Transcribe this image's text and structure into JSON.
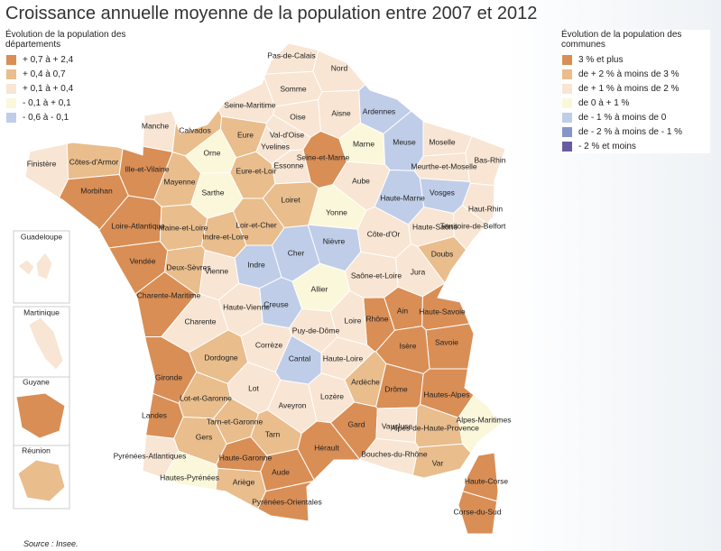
{
  "title": "Croissance annuelle moyenne de la population entre 2007 et 2012",
  "legend_departements": {
    "title": "Évolution de la population des départements",
    "items": [
      {
        "label": "+ 0,7 à + 2,4",
        "color": "#d98e55"
      },
      {
        "label": "+ 0,4 à 0,7",
        "color": "#e9bd8c"
      },
      {
        "label": "+ 0,1 à + 0,4",
        "color": "#f8e5d3"
      },
      {
        "label": "- 0,1 à + 0,1",
        "color": "#fbf7da"
      },
      {
        "label": "- 0,6 à - 0,1",
        "color": "#bfcde8"
      }
    ]
  },
  "legend_communes": {
    "title": "Évolution de la population des communes",
    "items": [
      {
        "label": "3 % et plus",
        "color": "#d98e55"
      },
      {
        "label": "de + 2 % à moins de 3 %",
        "color": "#e9bd8c"
      },
      {
        "label": "de + 1 % à moins de 2 %",
        "color": "#f8e5d3"
      },
      {
        "label": "de 0 à + 1 %",
        "color": "#fbf7da"
      },
      {
        "label": "de - 1 % à moins de 0",
        "color": "#bfcde8"
      },
      {
        "label": "de - 2 % à moins de - 1 %",
        "color": "#8696c8"
      },
      {
        "label": "- 2 % et moins",
        "color": "#6a5aa0"
      }
    ]
  },
  "departements": [
    {
      "label": "Pas-de-Calais",
      "color": "#f8e5d3"
    },
    {
      "label": "Nord",
      "color": "#f8e5d3"
    },
    {
      "label": "Somme",
      "color": "#f8e5d3"
    },
    {
      "label": "Seine-Maritime",
      "color": "#f8e5d3"
    },
    {
      "label": "Aisne",
      "color": "#f8e5d3"
    },
    {
      "label": "Ardennes",
      "color": "#bfcde8"
    },
    {
      "label": "Manche",
      "color": "#f8e5d3"
    },
    {
      "label": "Calvados",
      "color": "#e9bd8c"
    },
    {
      "label": "Eure",
      "color": "#e9bd8c"
    },
    {
      "label": "Oise",
      "color": "#f8e5d3"
    },
    {
      "label": "Val-d'Oise",
      "color": "#f8e5d3"
    },
    {
      "label": "Yvelines",
      "color": "#f8e5d3"
    },
    {
      "label": "Seine-et-Marne",
      "color": "#d98e55"
    },
    {
      "label": "Marne",
      "color": "#fbf7da"
    },
    {
      "label": "Meuse",
      "color": "#bfcde8"
    },
    {
      "label": "Moselle",
      "color": "#f8e5d3"
    },
    {
      "label": "Bas-Rhin",
      "color": "#f8e5d3"
    },
    {
      "label": "Finistère",
      "color": "#f8e5d3"
    },
    {
      "label": "Côtes-d'Armor",
      "color": "#e9bd8c"
    },
    {
      "label": "Ille-et-Vilaine",
      "color": "#d98e55"
    },
    {
      "label": "Orne",
      "color": "#fbf7da"
    },
    {
      "label": "Essonne",
      "color": "#f8e5d3"
    },
    {
      "label": "Eure-et-Loir",
      "color": "#e9bd8c"
    },
    {
      "label": "Meurthe-et-Moselle",
      "color": "#f8e5d3"
    },
    {
      "label": "Aube",
      "color": "#f8e5d3"
    },
    {
      "label": "Morbihan",
      "color": "#d98e55"
    },
    {
      "label": "Mayenne",
      "color": "#e9bd8c"
    },
    {
      "label": "Sarthe",
      "color": "#fbf7da"
    },
    {
      "label": "Loiret",
      "color": "#e9bd8c"
    },
    {
      "label": "Yonne",
      "color": "#fbf7da"
    },
    {
      "label": "Haute-Marne",
      "color": "#bfcde8"
    },
    {
      "label": "Vosges",
      "color": "#bfcde8"
    },
    {
      "label": "Haut-Rhin",
      "color": "#f8e5d3"
    },
    {
      "label": "Loire-Atlantique",
      "color": "#d98e55"
    },
    {
      "label": "Maine-et-Loire",
      "color": "#e9bd8c"
    },
    {
      "label": "Loir-et-Cher",
      "color": "#e9bd8c"
    },
    {
      "label": "Indre-et-Loire",
      "color": "#e9bd8c"
    },
    {
      "label": "Côte-d'Or",
      "color": "#f8e5d3"
    },
    {
      "label": "Haute-Saône",
      "color": "#f8e5d3"
    },
    {
      "label": "Territoire-de-Belfort",
      "color": "#f8e5d3"
    },
    {
      "label": "Cher",
      "color": "#bfcde8"
    },
    {
      "label": "Nièvre",
      "color": "#bfcde8"
    },
    {
      "label": "Doubs",
      "color": "#e9bd8c"
    },
    {
      "label": "Vendée",
      "color": "#d98e55"
    },
    {
      "label": "Deux-Sèvres",
      "color": "#e9bd8c"
    },
    {
      "label": "Vienne",
      "color": "#f8e5d3"
    },
    {
      "label": "Indre",
      "color": "#bfcde8"
    },
    {
      "label": "Saône-et-Loire",
      "color": "#f8e5d3"
    },
    {
      "label": "Jura",
      "color": "#f8e5d3"
    },
    {
      "label": "Allier",
      "color": "#fbf7da"
    },
    {
      "label": "Charente-Maritime",
      "color": "#d98e55"
    },
    {
      "label": "Haute-Savoie",
      "color": "#d98e55"
    },
    {
      "label": "Ain",
      "color": "#d98e55"
    },
    {
      "label": "Creuse",
      "color": "#bfcde8"
    },
    {
      "label": "Haute-Vienne",
      "color": "#f8e5d3"
    },
    {
      "label": "Charente",
      "color": "#f8e5d3"
    },
    {
      "label": "Rhône",
      "color": "#d98e55"
    },
    {
      "label": "Loire",
      "color": "#f8e5d3"
    },
    {
      "label": "Puy-de-Dôme",
      "color": "#f8e5d3"
    },
    {
      "label": "Savoie",
      "color": "#d98e55"
    },
    {
      "label": "Isère",
      "color": "#d98e55"
    },
    {
      "label": "Corrèze",
      "color": "#f8e5d3"
    },
    {
      "label": "Dordogne",
      "color": "#e9bd8c"
    },
    {
      "label": "Cantal",
      "color": "#bfcde8"
    },
    {
      "label": "Haute-Loire",
      "color": "#f8e5d3"
    },
    {
      "label": "Gironde",
      "color": "#d98e55"
    },
    {
      "label": "Lot-et-Garonne",
      "color": "#e9bd8c"
    },
    {
      "label": "Lot",
      "color": "#f8e5d3"
    },
    {
      "label": "Ardèche",
      "color": "#e9bd8c"
    },
    {
      "label": "Lozère",
      "color": "#f8e5d3"
    },
    {
      "label": "Drôme",
      "color": "#d98e55"
    },
    {
      "label": "Hautes-Alpes",
      "color": "#d98e55"
    },
    {
      "label": "Landes",
      "color": "#d98e55"
    },
    {
      "label": "Aveyron",
      "color": "#f8e5d3"
    },
    {
      "label": "Tarn-et-Garonne",
      "color": "#e9bd8c"
    },
    {
      "label": "Gard",
      "color": "#d98e55"
    },
    {
      "label": "Vaucluse",
      "color": "#f8e5d3"
    },
    {
      "label": "Alpes-de-Haute-Provence",
      "color": "#e9bd8c"
    },
    {
      "label": "Alpes-Maritimes",
      "color": "#fbf7da"
    },
    {
      "label": "Gers",
      "color": "#e9bd8c"
    },
    {
      "label": "Tarn",
      "color": "#e9bd8c"
    },
    {
      "label": "Bouches-du-Rhône",
      "color": "#f8e5d3"
    },
    {
      "label": "Hérault",
      "color": "#d98e55"
    },
    {
      "label": "Pyrénées-Atlantiques",
      "color": "#f8e5d3"
    },
    {
      "label": "Haute-Garonne",
      "color": "#d98e55"
    },
    {
      "label": "Var",
      "color": "#e9bd8c"
    },
    {
      "label": "Aude",
      "color": "#d98e55"
    },
    {
      "label": "Hautes-Pyrénées",
      "color": "#fbf7da"
    },
    {
      "label": "Ariège",
      "color": "#e9bd8c"
    },
    {
      "label": "Pyrénées-Orientales",
      "color": "#d98e55"
    },
    {
      "label": "Haute-Corse",
      "color": "#d98e55"
    },
    {
      "label": "Corse-du-Sud",
      "color": "#d98e55"
    }
  ],
  "overseas": [
    {
      "label": "Guadeloupe",
      "color": "#f8e5d3"
    },
    {
      "label": "Martinique",
      "color": "#f8e5d3"
    },
    {
      "label": "Guyane",
      "color": "#d98e55"
    },
    {
      "label": "Réunion",
      "color": "#e9bd8c"
    }
  ],
  "source": "Source : Insee."
}
